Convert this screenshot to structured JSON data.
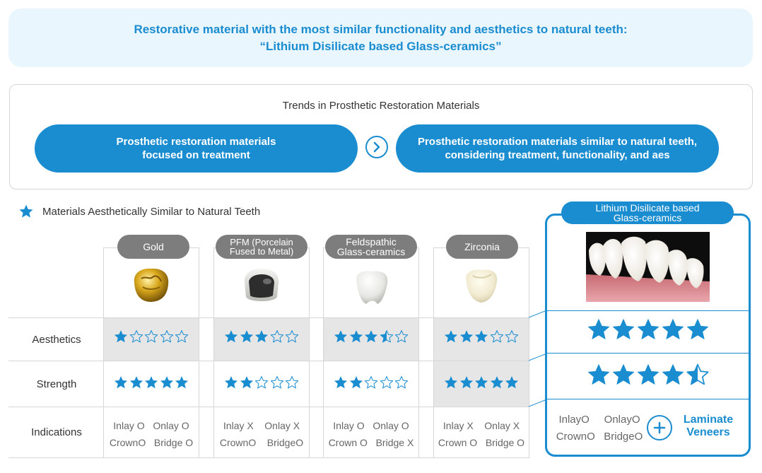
{
  "hero": {
    "line1": "Restorative material with the most similar functionality and aesthetics to natural teeth:",
    "line2": "“Lithium Disilicate based Glass-ceramics”"
  },
  "trends": {
    "title": "Trends in Prosthetic Restoration Materials",
    "left_line1": "Prosthetic restoration materials",
    "left_line2": "focused on treatment",
    "right_line1": "Prosthetic restoration materials similar to natural teeth,",
    "right_line2": "considering treatment, functionality, and aes"
  },
  "section": {
    "title": "Materials Aesthetically Similar to Natural Teeth"
  },
  "rows": {
    "aesthetics": "Aesthetics",
    "strength": "Strength",
    "indications": "Indications"
  },
  "materials": [
    {
      "name_line1": "Gold",
      "name_line2": "",
      "aesthetics": 1,
      "strength": 5,
      "ind": [
        "Inlay O",
        "Onlay O",
        "CrownO",
        "Bridge O"
      ]
    },
    {
      "name_line1": "PFM (Porcelain",
      "name_line2": "Fused to Metal)",
      "aesthetics": 3,
      "strength": 2,
      "ind": [
        "Inlay X",
        "Onlay X",
        "CrownO",
        "BridgeO"
      ]
    },
    {
      "name_line1": "Feldspathic",
      "name_line2": "Glass-ceramics",
      "aesthetics": 3.5,
      "strength": 2,
      "ind": [
        "Inlay O",
        "Onlay O",
        "Crown O",
        "Bridge X"
      ]
    },
    {
      "name_line1": "Zirconia",
      "name_line2": "",
      "aesthetics": 3,
      "strength": 5,
      "ind": [
        "Inlay X",
        "Onlay X",
        "Crown O",
        "Bridge O"
      ]
    }
  ],
  "highlight": {
    "name_line1": "Lithium Disilicate based",
    "name_line2": "Glass-ceramics",
    "aesthetics": 5,
    "strength": 4.5,
    "ind": [
      "InlayO",
      "OnlayO",
      "CrownO",
      "BridgeO"
    ],
    "extra_line1": "Laminate",
    "extra_line2": "Veneers"
  },
  "colors": {
    "accent": "#1a8cd0",
    "badge_gray": "#7d7d7d",
    "cell_gray": "#e6e6e6"
  }
}
